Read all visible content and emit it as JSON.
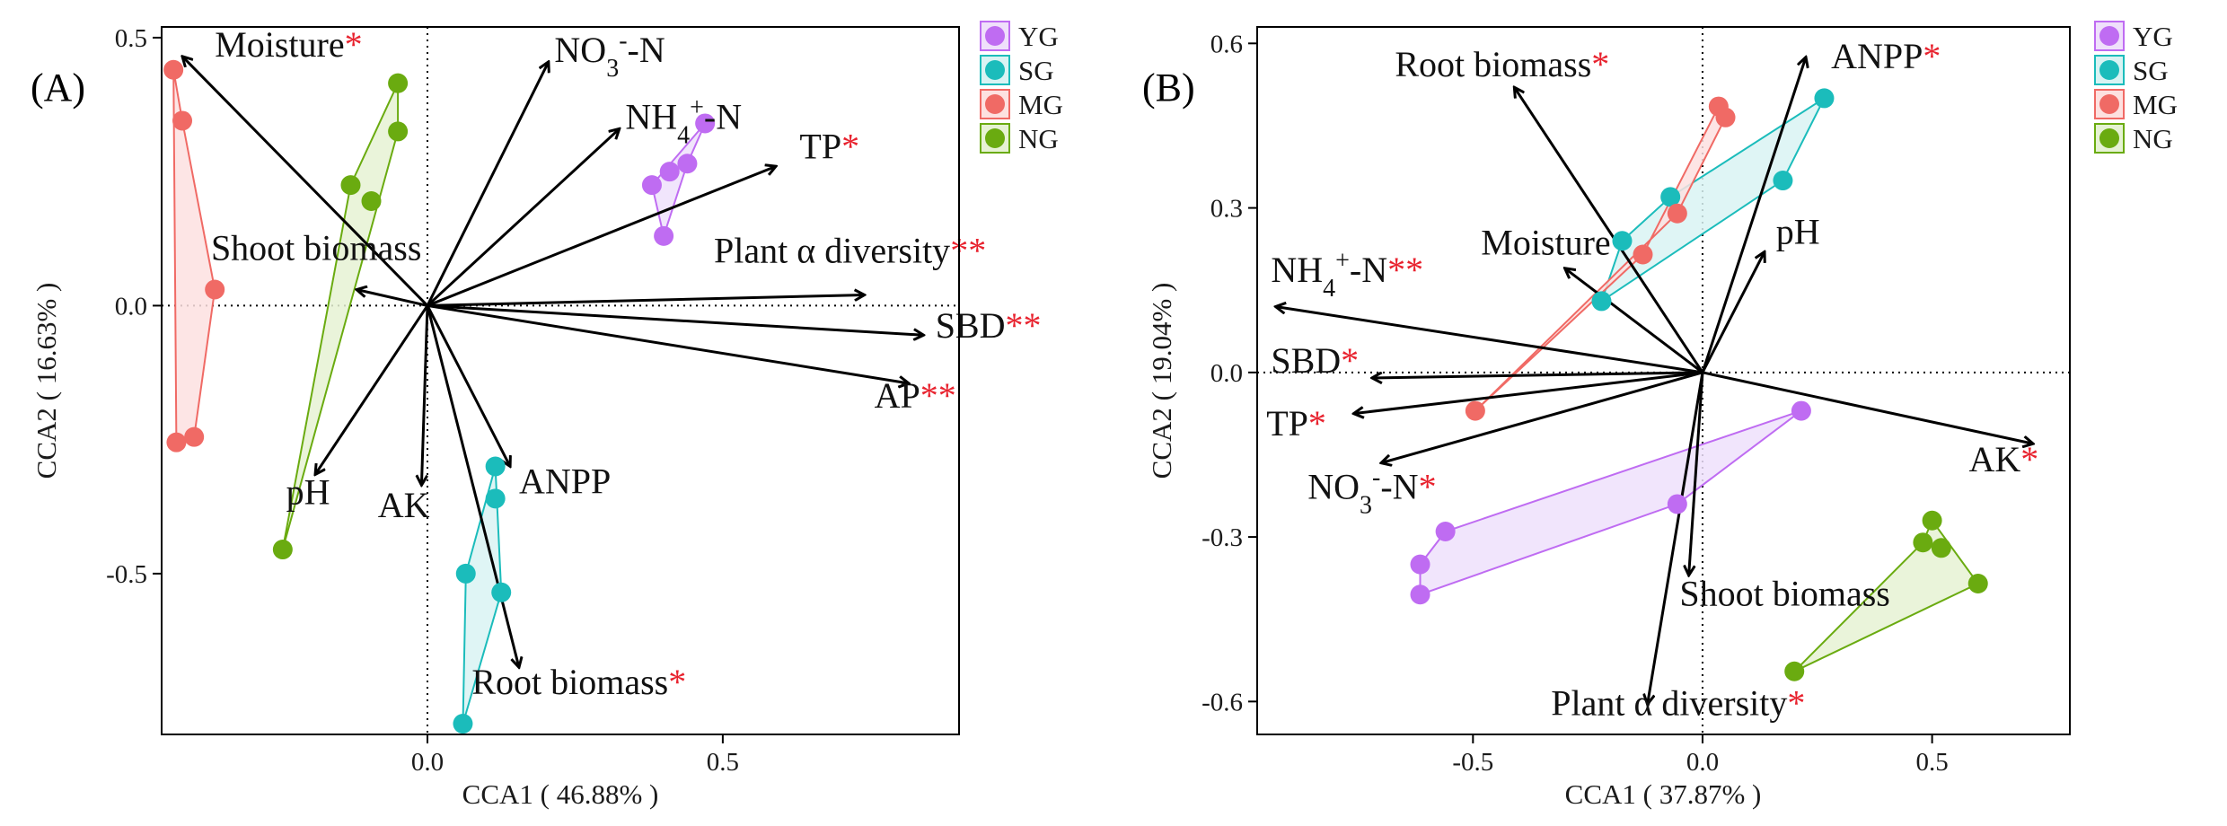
{
  "chart_data": [
    {
      "type": "scatter",
      "panel_label": "(A)",
      "xlabel": "CCA1 ( 46.88% )",
      "ylabel": "CCA2 ( 16.63% )",
      "xlim": [
        -0.45,
        0.9
      ],
      "ylim": [
        -0.8,
        0.52
      ],
      "xticks": [
        0,
        0.5
      ],
      "xtick_labels": [
        "0.0",
        "0.5"
      ],
      "yticks": [
        -0.5,
        0,
        0.5
      ],
      "ytick_labels": [
        "-0.5",
        "0.0",
        "0.5"
      ],
      "groups": [
        {
          "name": "YG",
          "color": "#bf6cf2",
          "points": [
            [
              0.47,
              0.34
            ],
            [
              0.44,
              0.265
            ],
            [
              0.41,
              0.25
            ],
            [
              0.38,
              0.225
            ],
            [
              0.4,
              0.13
            ]
          ],
          "hull": [
            [
              0.47,
              0.34
            ],
            [
              0.44,
              0.265
            ],
            [
              0.4,
              0.13
            ],
            [
              0.38,
              0.225
            ]
          ]
        },
        {
          "name": "SG",
          "color": "#1bbcbb",
          "points": [
            [
              0.115,
              -0.3
            ],
            [
              0.115,
              -0.36
            ],
            [
              0.125,
              -0.535
            ],
            [
              0.065,
              -0.5
            ],
            [
              0.06,
              -0.78
            ]
          ],
          "hull": [
            [
              0.115,
              -0.3
            ],
            [
              0.125,
              -0.535
            ],
            [
              0.06,
              -0.78
            ],
            [
              0.065,
              -0.5
            ]
          ]
        },
        {
          "name": "MG",
          "color": "#f06a65",
          "points": [
            [
              -0.43,
              0.44
            ],
            [
              -0.415,
              0.345
            ],
            [
              -0.36,
              0.03
            ],
            [
              -0.395,
              -0.245
            ],
            [
              -0.425,
              -0.255
            ]
          ],
          "hull": [
            [
              -0.43,
              0.44
            ],
            [
              -0.415,
              0.345
            ],
            [
              -0.36,
              0.03
            ],
            [
              -0.395,
              -0.245
            ],
            [
              -0.425,
              -0.255
            ]
          ]
        },
        {
          "name": "NG",
          "color": "#6aab10",
          "points": [
            [
              -0.05,
              0.415
            ],
            [
              -0.05,
              0.325
            ],
            [
              -0.13,
              0.225
            ],
            [
              -0.095,
              0.195
            ],
            [
              -0.245,
              -0.455
            ]
          ],
          "hull": [
            [
              -0.05,
              0.415
            ],
            [
              -0.05,
              0.325
            ],
            [
              -0.245,
              -0.455
            ],
            [
              -0.13,
              0.225
            ]
          ]
        }
      ],
      "arrows": [
        {
          "label": "Moisture",
          "sig": "*",
          "x": -0.415,
          "y": 0.465,
          "lx": -0.36,
          "ly": 0.465,
          "anchor": "start"
        },
        {
          "label": "NO3-N",
          "sig": "",
          "x": 0.205,
          "y": 0.455,
          "lx": 0.215,
          "ly": 0.455,
          "anchor": "start"
        },
        {
          "label": "NH4+-N",
          "sig": "",
          "x": 0.325,
          "y": 0.33,
          "lx": 0.335,
          "ly": 0.33,
          "anchor": "start"
        },
        {
          "label": "TP",
          "sig": "*",
          "x": 0.59,
          "y": 0.26,
          "lx": 0.63,
          "ly": 0.275,
          "anchor": "start"
        },
        {
          "label": "Plant α diversity",
          "sig": "**",
          "x": 0.74,
          "y": 0.02,
          "lx": 0.485,
          "ly": 0.08,
          "anchor": "start"
        },
        {
          "label": "SBD",
          "sig": "**",
          "x": 0.84,
          "y": -0.055,
          "lx": 0.86,
          "ly": -0.06,
          "anchor": "start"
        },
        {
          "label": "AP",
          "sig": "**",
          "x": 0.815,
          "y": -0.145,
          "lx": 0.895,
          "ly": -0.19,
          "anchor": "end"
        },
        {
          "label": "Shoot biomass",
          "sig": "",
          "x": -0.12,
          "y": 0.03,
          "lx": -0.01,
          "ly": 0.085,
          "anchor": "end"
        },
        {
          "label": "pH",
          "sig": "",
          "x": -0.19,
          "y": -0.315,
          "lx": -0.165,
          "ly": -0.37,
          "anchor": "end"
        },
        {
          "label": "AK",
          "sig": "",
          "x": -0.01,
          "y": -0.335,
          "lx": -0.04,
          "ly": -0.395,
          "anchor": "middle"
        },
        {
          "label": "ANPP",
          "sig": "",
          "x": 0.14,
          "y": -0.3,
          "lx": 0.155,
          "ly": -0.35,
          "anchor": "start"
        },
        {
          "label": "Root biomass",
          "sig": "*",
          "x": 0.155,
          "y": -0.675,
          "lx": 0.075,
          "ly": -0.725,
          "anchor": "start"
        }
      ]
    },
    {
      "type": "scatter",
      "panel_label": "(B)",
      "xlabel": "CCA1 ( 37.87% )",
      "ylabel": "CCA2 ( 19.04% )",
      "xlim": [
        -0.97,
        0.8
      ],
      "ylim": [
        -0.66,
        0.63
      ],
      "xticks": [
        -0.5,
        0,
        0.5
      ],
      "xtick_labels": [
        "-0.5",
        "0.0",
        "0.5"
      ],
      "yticks": [
        -0.6,
        -0.3,
        0,
        0.3,
        0.6
      ],
      "ytick_labels": [
        "-0.6",
        "-0.3",
        "0.0",
        "0.3",
        "0.6"
      ],
      "groups": [
        {
          "name": "YG",
          "color": "#bf6cf2",
          "points": [
            [
              0.215,
              -0.07
            ],
            [
              -0.055,
              -0.24
            ],
            [
              -0.56,
              -0.29
            ],
            [
              -0.615,
              -0.35
            ],
            [
              -0.615,
              -0.405
            ]
          ],
          "hull": [
            [
              0.215,
              -0.07
            ],
            [
              -0.055,
              -0.24
            ],
            [
              -0.615,
              -0.405
            ],
            [
              -0.615,
              -0.35
            ],
            [
              -0.56,
              -0.29
            ]
          ]
        },
        {
          "name": "SG",
          "color": "#1bbcbb",
          "points": [
            [
              0.265,
              0.5
            ],
            [
              0.175,
              0.35
            ],
            [
              -0.07,
              0.32
            ],
            [
              -0.175,
              0.24
            ],
            [
              -0.22,
              0.13
            ]
          ],
          "hull": [
            [
              0.265,
              0.5
            ],
            [
              0.175,
              0.35
            ],
            [
              -0.22,
              0.13
            ],
            [
              -0.175,
              0.24
            ],
            [
              -0.07,
              0.32
            ]
          ]
        },
        {
          "name": "MG",
          "color": "#f06a65",
          "points": [
            [
              0.035,
              0.485
            ],
            [
              0.05,
              0.465
            ],
            [
              -0.055,
              0.29
            ],
            [
              -0.13,
              0.215
            ],
            [
              -0.495,
              -0.07
            ]
          ],
          "hull": [
            [
              0.035,
              0.485
            ],
            [
              0.05,
              0.465
            ],
            [
              -0.055,
              0.29
            ],
            [
              -0.495,
              -0.07
            ],
            [
              -0.13,
              0.215
            ]
          ]
        },
        {
          "name": "NG",
          "color": "#6aab10",
          "points": [
            [
              0.5,
              -0.27
            ],
            [
              0.48,
              -0.31
            ],
            [
              0.52,
              -0.32
            ],
            [
              0.6,
              -0.385
            ],
            [
              0.2,
              -0.545
            ]
          ],
          "hull": [
            [
              0.5,
              -0.27
            ],
            [
              0.6,
              -0.385
            ],
            [
              0.2,
              -0.545
            ],
            [
              0.48,
              -0.31
            ]
          ]
        }
      ],
      "arrows": [
        {
          "label": "Root biomass",
          "sig": "*",
          "x": -0.41,
          "y": 0.52,
          "lx": -0.67,
          "ly": 0.54,
          "anchor": "start"
        },
        {
          "label": "ANPP",
          "sig": "*",
          "x": 0.225,
          "y": 0.575,
          "lx": 0.28,
          "ly": 0.555,
          "anchor": "start"
        },
        {
          "label": "pH",
          "sig": "",
          "x": 0.135,
          "y": 0.22,
          "lx": 0.16,
          "ly": 0.235,
          "anchor": "start"
        },
        {
          "label": "Moisture",
          "sig": "",
          "x": -0.3,
          "y": 0.19,
          "lx": -0.2,
          "ly": 0.215,
          "anchor": "end"
        },
        {
          "label": "NH4+-N",
          "sig": "**",
          "x": -0.93,
          "y": 0.12,
          "lx": -0.94,
          "ly": 0.165,
          "anchor": "start"
        },
        {
          "label": "SBD",
          "sig": "*",
          "x": -0.72,
          "y": -0.01,
          "lx": -0.94,
          "ly": 0,
          "anchor": "start"
        },
        {
          "label": "TP",
          "sig": "*",
          "x": -0.76,
          "y": -0.075,
          "lx": -0.95,
          "ly": -0.115,
          "anchor": "start"
        },
        {
          "label": "NO3-N",
          "sig": "*",
          "x": -0.7,
          "y": -0.165,
          "lx": -0.86,
          "ly": -0.23,
          "anchor": "start"
        },
        {
          "label": "AK",
          "sig": "*",
          "x": 0.72,
          "y": -0.13,
          "lx": 0.58,
          "ly": -0.18,
          "anchor": "start"
        },
        {
          "label": "Shoot biomass",
          "sig": "",
          "x": -0.03,
          "y": -0.37,
          "lx": -0.05,
          "ly": -0.425,
          "anchor": "start"
        },
        {
          "label": "Plant α diversity",
          "sig": "*",
          "x": -0.12,
          "y": -0.605,
          "lx": -0.33,
          "ly": -0.625,
          "anchor": "start"
        }
      ]
    }
  ],
  "legend": [
    {
      "name": "YG",
      "color": "#bf6cf2",
      "fill": "#efe0fb"
    },
    {
      "name": "SG",
      "color": "#1bbcbb",
      "fill": "#d9f3f3"
    },
    {
      "name": "MG",
      "color": "#f06a65",
      "fill": "#fde1e0"
    },
    {
      "name": "NG",
      "color": "#6aab10",
      "fill": "#e6f2d4"
    }
  ]
}
